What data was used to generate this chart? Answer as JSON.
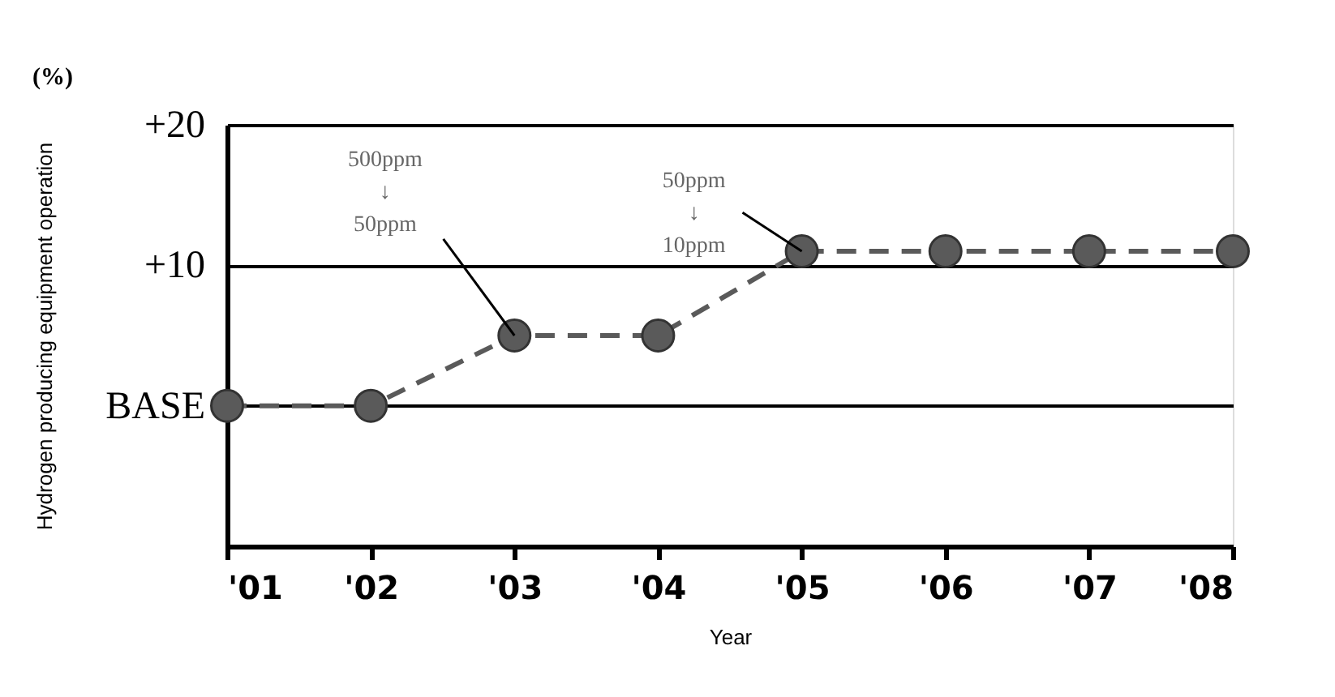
{
  "chart_data": {
    "type": "line",
    "xlabel": "Year",
    "ylabel": "Hydrogen producing equipment operation",
    "categories": [
      "'01",
      "'02",
      "'03",
      "'04",
      "'05",
      "'06",
      "'07",
      "'08"
    ],
    "series": [
      {
        "color": "#5a5a5a",
        "values": [
          0,
          0,
          5,
          5,
          11,
          11,
          11,
          11
        ]
      }
    ],
    "ylim": [
      -10,
      20
    ],
    "yticks": [
      {
        "value": -10,
        "label": null
      },
      {
        "value": 0,
        "label": "BASE"
      },
      {
        "value": 10,
        "label": "+10"
      },
      {
        "value": 20,
        "label": "+20"
      }
    ],
    "grid": "y",
    "marker": "circle",
    "line_style": "dashed",
    "annotations": [
      "(%)",
      {
        "text": "500ppm ↓ 50ppm",
        "x": "'03",
        "y": 5
      },
      {
        "text": "50ppm ↓ 10ppm",
        "x": "'05",
        "y": 11
      }
    ]
  }
}
